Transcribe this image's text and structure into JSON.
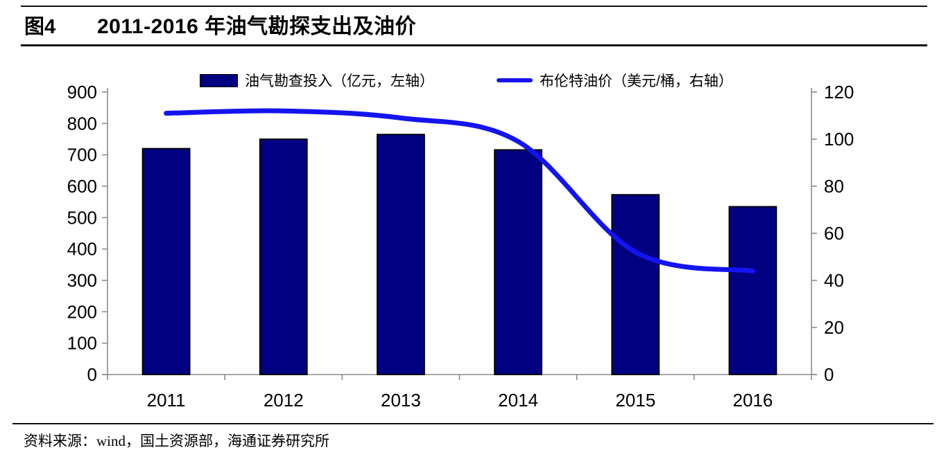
{
  "figure": {
    "tag": "图4",
    "title": "2011-2016 年油气勘探支出及油价",
    "source": "资料来源：wind，国土资源部，海通证券研究所"
  },
  "legend": [
    {
      "label": "油气勘查投入（亿元，左轴）",
      "marker": "bar-swatch",
      "color": "#000080"
    },
    {
      "label": "布伦特油价（美元/桶，右轴）",
      "marker": "line-swatch",
      "color": "#1414F0"
    }
  ],
  "chart_data": {
    "type": "combo",
    "title": "2011-2016 年油气勘探支出及油价",
    "categories": [
      "2011",
      "2012",
      "2013",
      "2014",
      "2015",
      "2016"
    ],
    "series": [
      {
        "name": "油气勘查投入（亿元，左轴）",
        "type": "bar",
        "axis": "left",
        "color": "#000080",
        "border_color": "#000000",
        "values": [
          720,
          750,
          765,
          716,
          573,
          535
        ]
      },
      {
        "name": "布伦特油价（美元/桶，右轴）",
        "type": "line",
        "axis": "right",
        "color": "#1414F0",
        "smooth": true,
        "values": [
          111,
          112,
          109,
          99,
          52,
          44
        ]
      }
    ],
    "left_axis": {
      "min": 0,
      "max": 900,
      "ticks": [
        0,
        100,
        200,
        300,
        400,
        500,
        600,
        700,
        800,
        900
      ]
    },
    "right_axis": {
      "min": 0,
      "max": 120,
      "ticks": [
        0,
        20,
        40,
        60,
        80,
        100,
        120
      ]
    },
    "grid": false,
    "legend_position": "top-center",
    "axis_color": "#8C8C8C",
    "tick_label_color": "#000000"
  }
}
